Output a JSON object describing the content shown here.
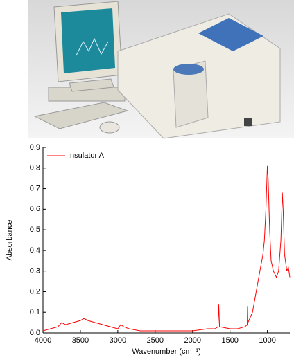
{
  "chart_data": {
    "type": "line",
    "x_label": "Wavenumber (cm⁻¹)",
    "y_label": "Absorbance",
    "x": [
      4000,
      3900,
      3800,
      3750,
      3700,
      3600,
      3500,
      3450,
      3400,
      3300,
      3200,
      3100,
      3000,
      2960,
      2920,
      2850,
      2700,
      2500,
      2300,
      2000,
      1800,
      1700,
      1660,
      1650,
      1640,
      1500,
      1400,
      1300,
      1270,
      1265,
      1260,
      1200,
      1150,
      1100,
      1060,
      1040,
      1020,
      1000,
      990,
      970,
      950,
      920,
      880,
      850,
      820,
      800,
      790,
      770,
      740,
      720,
      700
    ],
    "series": [
      {
        "name": "Insulator A",
        "color": "#ff0000",
        "values": [
          0.01,
          0.02,
          0.03,
          0.05,
          0.04,
          0.05,
          0.06,
          0.07,
          0.06,
          0.05,
          0.04,
          0.03,
          0.02,
          0.04,
          0.03,
          0.02,
          0.01,
          0.01,
          0.01,
          0.01,
          0.02,
          0.02,
          0.03,
          0.14,
          0.03,
          0.02,
          0.02,
          0.03,
          0.04,
          0.13,
          0.05,
          0.1,
          0.2,
          0.3,
          0.38,
          0.45,
          0.6,
          0.81,
          0.75,
          0.5,
          0.35,
          0.3,
          0.27,
          0.3,
          0.45,
          0.68,
          0.6,
          0.38,
          0.3,
          0.32,
          0.27
        ]
      }
    ],
    "xlim": [
      4000,
      700
    ],
    "xticks": [
      4000,
      3500,
      3000,
      2500,
      2000,
      1500,
      1000
    ],
    "ylim": [
      0,
      0.9
    ],
    "yticks": [
      {
        "value": 0,
        "label": "0,0"
      },
      {
        "value": 0.1,
        "label": "0,1"
      },
      {
        "value": 0.2,
        "label": "0,2"
      },
      {
        "value": 0.3,
        "label": "0,3"
      },
      {
        "value": 0.4,
        "label": "0,4"
      },
      {
        "value": 0.5,
        "label": "0,5"
      },
      {
        "value": 0.6,
        "label": "0,6"
      },
      {
        "value": 0.7,
        "label": "0,7"
      },
      {
        "value": 0.8,
        "label": "0,8"
      },
      {
        "value": 0.9,
        "label": "0,9"
      }
    ],
    "legend": "top-left"
  }
}
